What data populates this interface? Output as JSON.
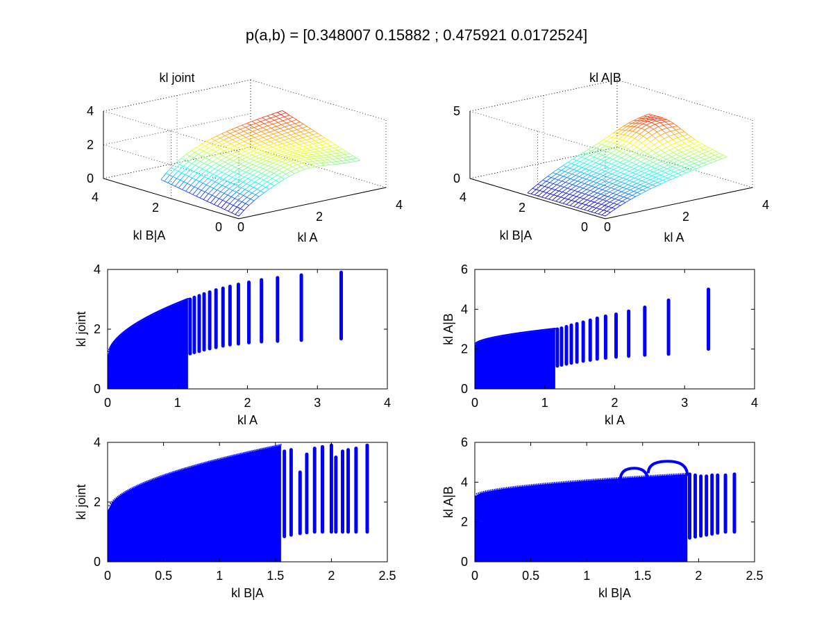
{
  "figure": {
    "suptitle": "p(a,b) = [0.348007 0.15882 ; 0.475921 0.0172524]"
  },
  "chart_data": [
    {
      "type": "surface",
      "title": "kl joint",
      "xlabel": "kl A",
      "ylabel": "kl B|A",
      "xlim": [
        0,
        4
      ],
      "ylim": [
        0,
        4
      ],
      "zlim": [
        0,
        4
      ],
      "x_ticks": [
        0,
        2,
        4
      ],
      "y_ticks": [
        0,
        2,
        4
      ],
      "z_ticks": [
        0,
        2,
        4
      ],
      "x_tick_labels": [
        "0",
        "2",
        "4"
      ],
      "y_tick_labels": [
        "0",
        "2",
        "4"
      ],
      "z_tick_labels": [
        "0",
        "2",
        "4"
      ],
      "grid": true,
      "colormap": "jet",
      "surface": {
        "x_range": [
          0,
          3.3
        ],
        "y_range": [
          0,
          2.3
        ],
        "z_range": [
          0,
          3.9
        ],
        "peak_z": 3.9,
        "base_z": 1.0
      }
    },
    {
      "type": "surface",
      "title": "kl A|B",
      "xlabel": "kl A",
      "ylabel": "kl B|A",
      "xlim": [
        0,
        4
      ],
      "ylim": [
        0,
        4
      ],
      "zlim": [
        0,
        5
      ],
      "x_ticks": [
        0,
        2,
        4
      ],
      "y_ticks": [
        0,
        2,
        4
      ],
      "z_ticks": [
        0,
        5
      ],
      "x_tick_labels": [
        "0",
        "2",
        "4"
      ],
      "y_tick_labels": [
        "0",
        "2",
        "4"
      ],
      "z_tick_labels": [
        "0",
        "5"
      ],
      "grid": true,
      "colormap": "jet",
      "surface": {
        "x_range": [
          0,
          3.3
        ],
        "y_range": [
          0,
          2.3
        ],
        "z_range": [
          0,
          5.0
        ],
        "peak_z": 5.0,
        "base_z": 2.0
      }
    },
    {
      "type": "scatter",
      "xlabel": "kl A",
      "ylabel": "kl joint",
      "xlim": [
        0,
        4
      ],
      "ylim": [
        0,
        4
      ],
      "x_ticks": [
        0,
        1,
        2,
        3,
        4
      ],
      "y_ticks": [
        0,
        2,
        4
      ],
      "x_tick_labels": [
        "0",
        "1",
        "2",
        "3",
        "4"
      ],
      "y_tick_labels": [
        "0",
        "2",
        "4"
      ],
      "color": "#0000ff",
      "columns": [
        {
          "x": 1.18,
          "ymin": 1.18,
          "ymax": 3.0
        },
        {
          "x": 1.24,
          "ymin": 1.22,
          "ymax": 3.06
        },
        {
          "x": 1.31,
          "ymin": 1.26,
          "ymax": 3.12
        },
        {
          "x": 1.38,
          "ymin": 1.31,
          "ymax": 3.18
        },
        {
          "x": 1.46,
          "ymin": 1.35,
          "ymax": 3.24
        },
        {
          "x": 1.55,
          "ymin": 1.39,
          "ymax": 3.31
        },
        {
          "x": 1.65,
          "ymin": 1.44,
          "ymax": 3.37
        },
        {
          "x": 1.75,
          "ymin": 1.48,
          "ymax": 3.43
        },
        {
          "x": 1.87,
          "ymin": 1.51,
          "ymax": 3.5
        },
        {
          "x": 2.02,
          "ymin": 1.55,
          "ymax": 3.57
        },
        {
          "x": 2.2,
          "ymin": 1.58,
          "ymax": 3.65
        },
        {
          "x": 2.43,
          "ymin": 1.6,
          "ymax": 3.72
        },
        {
          "x": 2.77,
          "ymin": 1.63,
          "ymax": 3.81
        },
        {
          "x": 3.34,
          "ymin": 1.68,
          "ymax": 3.9
        }
      ],
      "dense_region": {
        "x_max": 1.15,
        "y_low_start": 0.0,
        "y_high_start": 1.1,
        "y_high_end": 3.0
      }
    },
    {
      "type": "scatter",
      "xlabel": "kl A",
      "ylabel": "kl A|B",
      "xlim": [
        0,
        4
      ],
      "ylim": [
        0,
        6
      ],
      "x_ticks": [
        0,
        1,
        2,
        3,
        4
      ],
      "y_ticks": [
        0,
        2,
        4,
        6
      ],
      "x_tick_labels": [
        "0",
        "1",
        "2",
        "3",
        "4"
      ],
      "y_tick_labels": [
        "0",
        "2",
        "4",
        "6"
      ],
      "color": "#0000ff",
      "columns": [
        {
          "x": 1.18,
          "ymin": 1.15,
          "ymax": 3.0
        },
        {
          "x": 1.24,
          "ymin": 1.2,
          "ymax": 3.05
        },
        {
          "x": 1.31,
          "ymin": 1.25,
          "ymax": 3.12
        },
        {
          "x": 1.38,
          "ymin": 1.3,
          "ymax": 3.2
        },
        {
          "x": 1.46,
          "ymin": 1.35,
          "ymax": 3.27
        },
        {
          "x": 1.55,
          "ymin": 1.4,
          "ymax": 3.35
        },
        {
          "x": 1.65,
          "ymin": 1.45,
          "ymax": 3.45
        },
        {
          "x": 1.75,
          "ymin": 1.5,
          "ymax": 3.55
        },
        {
          "x": 1.87,
          "ymin": 1.55,
          "ymax": 3.65
        },
        {
          "x": 2.02,
          "ymin": 1.6,
          "ymax": 3.75
        },
        {
          "x": 2.2,
          "ymin": 1.65,
          "ymax": 3.9
        },
        {
          "x": 2.43,
          "ymin": 1.7,
          "ymax": 4.1
        },
        {
          "x": 2.77,
          "ymin": 1.75,
          "ymax": 4.45
        },
        {
          "x": 3.34,
          "ymin": 2.0,
          "ymax": 5.0
        }
      ],
      "dense_region": {
        "x_max": 1.15,
        "y_low_start": 0.0,
        "y_high_start": 2.2,
        "y_high_end": 3.0
      }
    },
    {
      "type": "scatter",
      "xlabel": "kl B|A",
      "ylabel": "kl joint",
      "xlim": [
        0,
        2.5
      ],
      "ylim": [
        0,
        4
      ],
      "x_ticks": [
        0,
        0.5,
        1,
        1.5,
        2,
        2.5
      ],
      "y_ticks": [
        0,
        2,
        4
      ],
      "x_tick_labels": [
        "0",
        "0.5",
        "1",
        "1.5",
        "2",
        "2.5"
      ],
      "y_tick_labels": [
        "0",
        "2",
        "4"
      ],
      "color": "#0000ff",
      "columns": [
        {
          "x": 1.58,
          "ymin": 0.85,
          "ymax": 3.7
        },
        {
          "x": 1.64,
          "ymin": 0.9,
          "ymax": 3.75
        },
        {
          "x": 1.72,
          "ymin": 0.95,
          "ymax": 3.0
        },
        {
          "x": 1.78,
          "ymin": 0.98,
          "ymax": 3.6
        },
        {
          "x": 1.85,
          "ymin": 1.0,
          "ymax": 3.8
        },
        {
          "x": 1.92,
          "ymin": 1.0,
          "ymax": 3.85
        },
        {
          "x": 2.0,
          "ymin": 1.0,
          "ymax": 3.9
        },
        {
          "x": 2.04,
          "ymin": 1.0,
          "ymax": 3.5
        },
        {
          "x": 2.1,
          "ymin": 1.0,
          "ymax": 3.7
        },
        {
          "x": 2.15,
          "ymin": 1.0,
          "ymax": 3.75
        },
        {
          "x": 2.22,
          "ymin": 1.0,
          "ymax": 3.8
        },
        {
          "x": 2.32,
          "ymin": 1.0,
          "ymax": 3.9
        }
      ],
      "dense_region": {
        "x_max": 1.55,
        "y_low_start": 0.0,
        "y_high_start": 1.7,
        "y_high_end": 3.9
      }
    },
    {
      "type": "scatter",
      "xlabel": "kl B|A",
      "ylabel": "kl A|B",
      "xlim": [
        0,
        2.5
      ],
      "ylim": [
        0,
        6
      ],
      "x_ticks": [
        0,
        0.5,
        1,
        1.5,
        2,
        2.5
      ],
      "y_ticks": [
        0,
        2,
        4,
        6
      ],
      "x_tick_labels": [
        "0",
        "0.5",
        "1",
        "1.5",
        "2",
        "2.5"
      ],
      "y_tick_labels": [
        "0",
        "2",
        "4",
        "6"
      ],
      "color": "#0000ff",
      "columns": [
        {
          "x": 1.92,
          "ymin": 1.2,
          "ymax": 4.4
        },
        {
          "x": 1.97,
          "ymin": 1.25,
          "ymax": 4.35
        },
        {
          "x": 2.02,
          "ymin": 1.3,
          "ymax": 4.3
        },
        {
          "x": 2.07,
          "ymin": 1.35,
          "ymax": 4.3
        },
        {
          "x": 2.12,
          "ymin": 1.4,
          "ymax": 4.35
        },
        {
          "x": 2.17,
          "ymin": 1.45,
          "ymax": 4.35
        },
        {
          "x": 2.24,
          "ymin": 1.5,
          "ymax": 4.35
        },
        {
          "x": 2.32,
          "ymin": 1.5,
          "ymax": 4.4
        }
      ],
      "dense_region": {
        "x_max": 1.9,
        "y_low_start": 0.0,
        "y_high_start": 3.3,
        "y_high_end": 4.4
      },
      "arcs": [
        {
          "x0": 1.3,
          "x1": 1.55,
          "y": 4.7
        },
        {
          "x0": 1.55,
          "x1": 1.9,
          "y": 5.05
        }
      ]
    }
  ]
}
